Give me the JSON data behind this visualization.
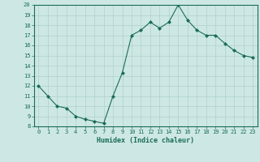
{
  "x": [
    0,
    1,
    2,
    3,
    4,
    5,
    6,
    7,
    8,
    9,
    10,
    11,
    12,
    13,
    14,
    15,
    16,
    17,
    18,
    19,
    20,
    21,
    22,
    23
  ],
  "y": [
    12,
    11,
    10,
    9.8,
    9,
    8.7,
    8.5,
    8.3,
    11,
    13.3,
    17,
    17.5,
    18.3,
    17.7,
    18.3,
    20,
    18.5,
    17.5,
    17,
    17,
    16.2,
    15.5,
    15,
    14.8
  ],
  "line_color": "#1a6b5a",
  "marker": "D",
  "marker_size": 2,
  "bg_color": "#cde8e4",
  "grid_color": "#afd0cb",
  "xlabel": "Humidex (Indice chaleur)",
  "ylim": [
    8,
    20
  ],
  "xlim": [
    -0.5,
    23.5
  ],
  "yticks": [
    8,
    9,
    10,
    11,
    12,
    13,
    14,
    15,
    16,
    17,
    18,
    19,
    20
  ],
  "xticks": [
    0,
    1,
    2,
    3,
    4,
    5,
    6,
    7,
    8,
    9,
    10,
    11,
    12,
    13,
    14,
    15,
    16,
    17,
    18,
    19,
    20,
    21,
    22,
    23
  ]
}
